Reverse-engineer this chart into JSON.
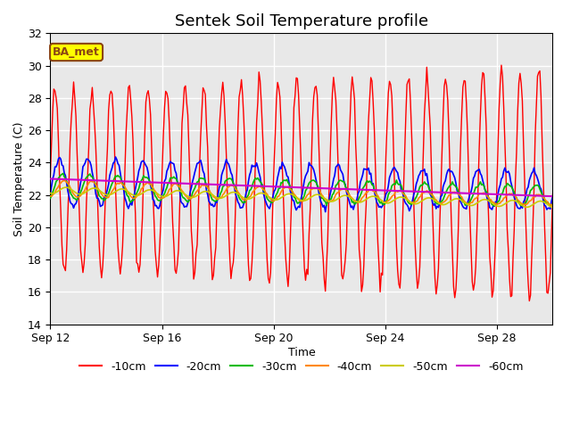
{
  "title": "Sentek Soil Temperature profile",
  "xlabel": "Time",
  "ylabel": "Soil Temperature (C)",
  "ylim": [
    14,
    32
  ],
  "yticks": [
    14,
    16,
    18,
    20,
    22,
    24,
    26,
    28,
    30,
    32
  ],
  "xlim_days": [
    0,
    18
  ],
  "xtick_labels": [
    "Sep 12",
    "Sep 16",
    "Sep 20",
    "Sep 24",
    "Sep 28"
  ],
  "xtick_positions": [
    0,
    4,
    8,
    12,
    16
  ],
  "colors": {
    "-10cm": "#ff0000",
    "-20cm": "#0000ff",
    "-30cm": "#00bb00",
    "-40cm": "#ff8800",
    "-50cm": "#cccc00",
    "-60cm": "#cc00cc"
  },
  "plot_bg_color": "#e8e8e8",
  "annotation_text": "BA_met",
  "annotation_bg": "#ffff00",
  "annotation_border": "#8B4513",
  "figsize": [
    6.4,
    4.8
  ],
  "dpi": 100
}
